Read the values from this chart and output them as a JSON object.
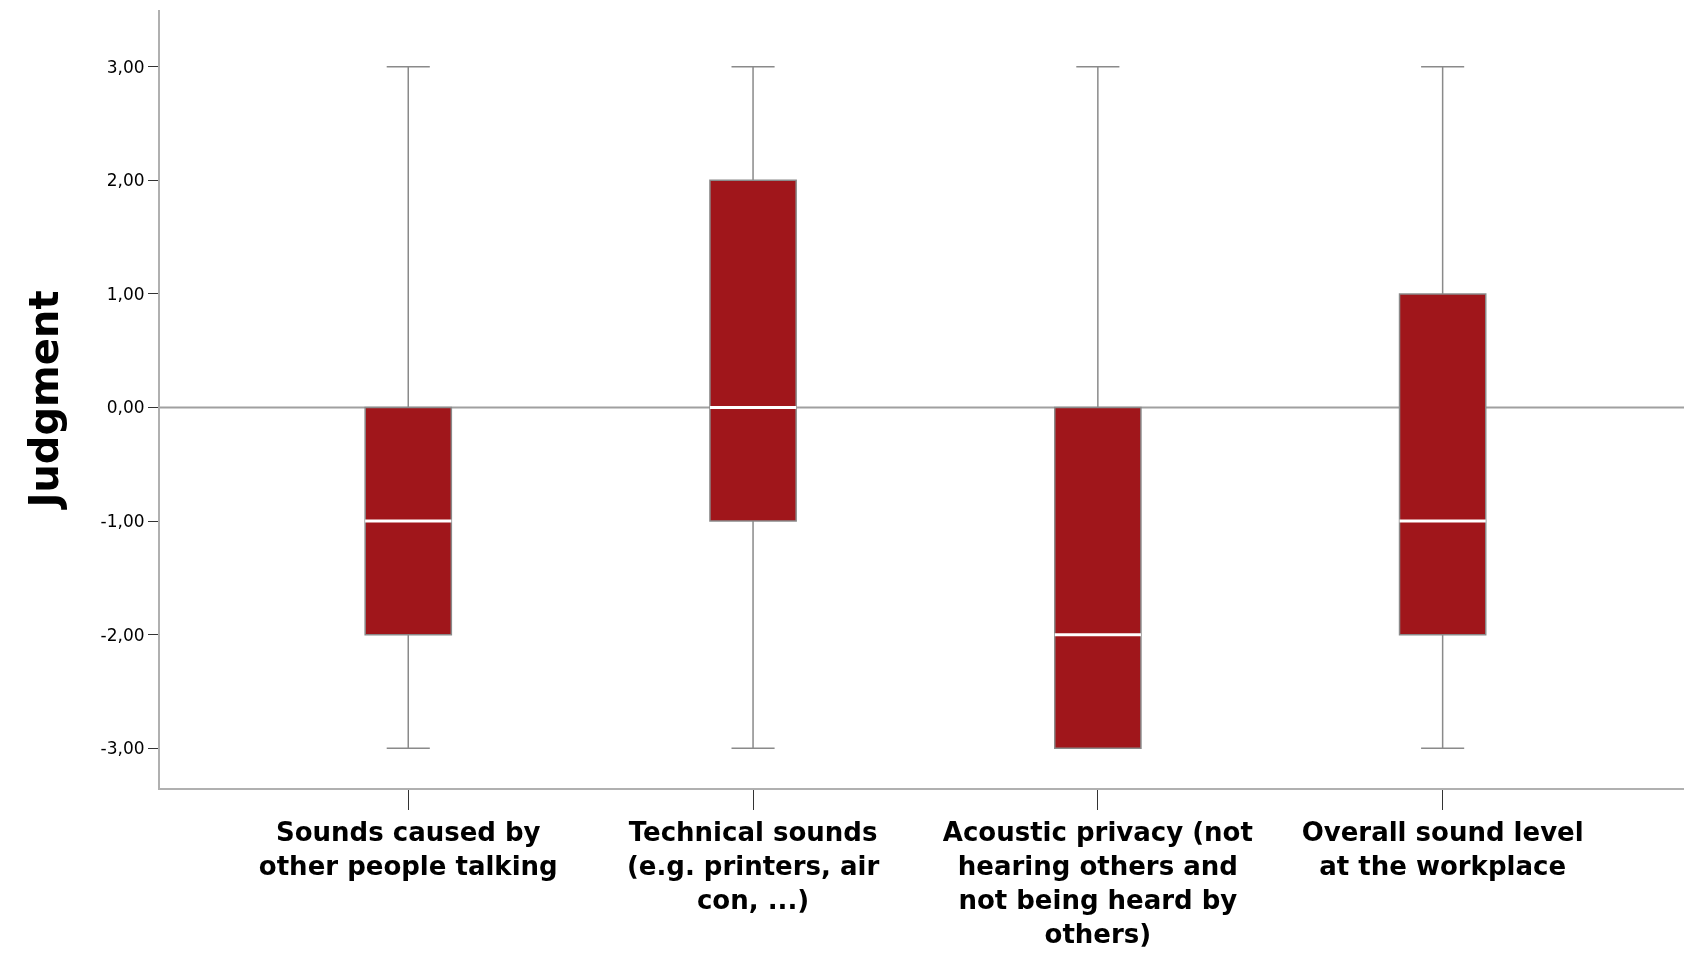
{
  "chart_data": {
    "type": "box",
    "ylabel": "Judgment",
    "categories": [
      "Sounds caused by other people talking",
      "Technical sounds (e.g. printers, air con, ...)",
      "Acoustic privacy (not hearing others and not being heard by others)",
      "Overall sound level at the workplace"
    ],
    "boxes": [
      {
        "low": -3,
        "q1": -2,
        "median": -1,
        "q3": 0,
        "high": 3
      },
      {
        "low": -3,
        "q1": -1,
        "median": 0,
        "q3": 2,
        "high": 3
      },
      {
        "low": -3,
        "q1": -3,
        "median": -2,
        "q3": 0,
        "high": 3
      },
      {
        "low": -3,
        "q1": -2,
        "median": -1,
        "q3": 1,
        "high": 3
      }
    ],
    "color": "#a0161b",
    "ylim": [
      -3.35,
      3.5
    ],
    "yticks": [
      {
        "value": 3,
        "label": "3,00"
      },
      {
        "value": 2,
        "label": "2,00"
      },
      {
        "value": 1,
        "label": "1,00"
      },
      {
        "value": 0,
        "label": "0,00"
      },
      {
        "value": -1,
        "label": "-1,00"
      },
      {
        "value": -2,
        "label": "-2,00"
      },
      {
        "value": -3,
        "label": "-3,00"
      }
    ],
    "ref_lines": [
      {
        "axis": "y",
        "value": 0,
        "color": "#a0a0a0"
      }
    ]
  }
}
